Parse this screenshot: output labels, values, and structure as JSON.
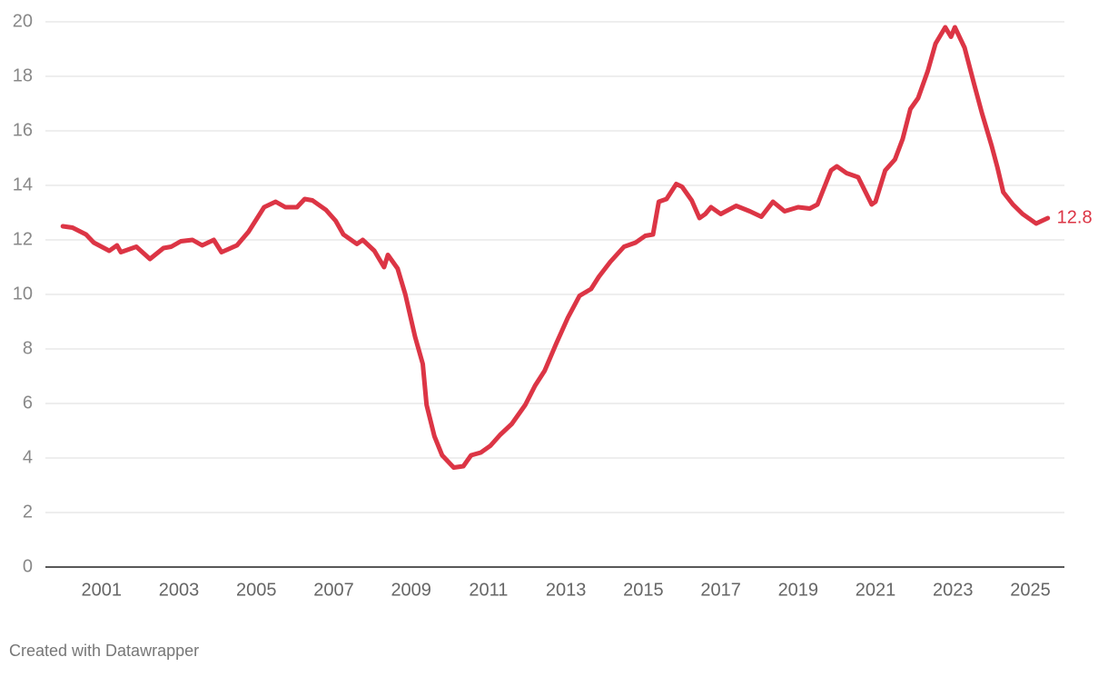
{
  "chart_data": {
    "type": "line",
    "x": [
      2000.0,
      2000.25,
      2000.6,
      2000.8,
      2001.2,
      2001.4,
      2001.5,
      2001.9,
      2002.25,
      2002.6,
      2002.8,
      2003.05,
      2003.35,
      2003.6,
      2003.9,
      2004.1,
      2004.5,
      2004.8,
      2005.2,
      2005.5,
      2005.75,
      2006.05,
      2006.25,
      2006.45,
      2006.8,
      2007.05,
      2007.25,
      2007.6,
      2007.75,
      2008.05,
      2008.3,
      2008.4,
      2008.65,
      2008.85,
      2009.1,
      2009.3,
      2009.4,
      2009.6,
      2009.8,
      2010.1,
      2010.35,
      2010.55,
      2010.8,
      2011.05,
      2011.3,
      2011.6,
      2011.95,
      2012.2,
      2012.45,
      2012.75,
      2013.05,
      2013.35,
      2013.65,
      2013.85,
      2014.15,
      2014.5,
      2014.8,
      2015.05,
      2015.25,
      2015.4,
      2015.6,
      2015.85,
      2016.0,
      2016.25,
      2016.45,
      2016.6,
      2016.75,
      2017.0,
      2017.4,
      2017.75,
      2018.05,
      2018.35,
      2018.65,
      2019.0,
      2019.3,
      2019.5,
      2019.85,
      2020.0,
      2020.25,
      2020.55,
      2020.9,
      2021.0,
      2021.25,
      2021.5,
      2021.7,
      2021.9,
      2022.1,
      2022.35,
      2022.55,
      2022.8,
      2022.95,
      2023.05,
      2023.3,
      2023.55,
      2023.75,
      2024.0,
      2024.15,
      2024.3,
      2024.55,
      2024.8,
      2025.15,
      2025.45
    ],
    "values": [
      12.5,
      12.45,
      12.2,
      11.9,
      11.6,
      11.8,
      11.55,
      11.75,
      11.3,
      11.7,
      11.75,
      11.95,
      12.0,
      11.8,
      12.0,
      11.55,
      11.8,
      12.3,
      13.2,
      13.4,
      13.2,
      13.2,
      13.5,
      13.45,
      13.1,
      12.7,
      12.2,
      11.85,
      12.0,
      11.6,
      11.0,
      11.45,
      10.95,
      10.0,
      8.45,
      7.45,
      5.95,
      4.8,
      4.1,
      3.65,
      3.7,
      4.1,
      4.2,
      4.45,
      4.85,
      5.25,
      5.95,
      6.65,
      7.2,
      8.2,
      9.15,
      9.95,
      10.2,
      10.65,
      11.2,
      11.75,
      11.9,
      12.15,
      12.2,
      13.4,
      13.5,
      14.05,
      13.95,
      13.45,
      12.8,
      12.95,
      13.2,
      12.95,
      13.25,
      13.05,
      12.85,
      13.4,
      13.05,
      13.2,
      13.15,
      13.3,
      14.55,
      14.7,
      14.45,
      14.3,
      13.3,
      13.4,
      14.55,
      14.95,
      15.7,
      16.8,
      17.2,
      18.2,
      19.2,
      19.8,
      19.45,
      19.8,
      19.05,
      17.7,
      16.65,
      15.45,
      14.65,
      13.75,
      13.3,
      12.95,
      12.6,
      12.8
    ],
    "color": "#dc3545",
    "xlim": [
      1999.55,
      2025.88
    ],
    "xticks": [
      2001,
      2003,
      2005,
      2007,
      2009,
      2011,
      2013,
      2015,
      2017,
      2019,
      2021,
      2023,
      2025
    ],
    "ylim": [
      0,
      20
    ],
    "yticks": [
      0,
      2,
      4,
      6,
      8,
      10,
      12,
      14,
      16,
      18,
      20
    ],
    "grid": true,
    "credit": "Created with Datawrapper"
  }
}
